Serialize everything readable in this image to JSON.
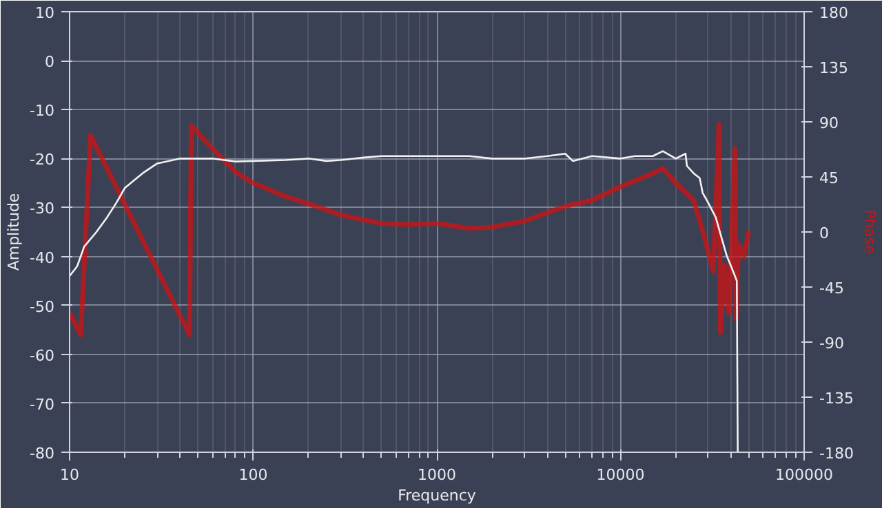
{
  "chart_data": {
    "type": "line",
    "xlabel": "Frequency",
    "ylabel": "Amplitude",
    "y2label": "Phase",
    "log": "x",
    "grid": true,
    "xlim": [
      10,
      100000
    ],
    "xticks": [
      10,
      100,
      1000,
      10000,
      100000
    ],
    "ylim": [
      -80,
      10
    ],
    "yticks": [
      -80,
      -70,
      -60,
      -50,
      -40,
      -30,
      -20,
      -10,
      0,
      10
    ],
    "y2lim": [
      -180,
      180
    ],
    "y2ticks": [
      -180,
      -135,
      -90,
      -45,
      0,
      45,
      90,
      135,
      180
    ],
    "series": [
      {
        "color": "#f2f2f2",
        "x": [
          10,
          11,
          12,
          14,
          16,
          18,
          20,
          25,
          30,
          40,
          60,
          80,
          100,
          150,
          200,
          250,
          300,
          400,
          500,
          700,
          1000,
          1500,
          2000,
          3000,
          4000,
          5000,
          5500,
          7000,
          10000,
          12000,
          15000,
          17000,
          20000,
          22600,
          23000,
          25000,
          27000,
          28000,
          30000,
          33000,
          36000,
          38000,
          40000,
          42000,
          43000,
          43500
        ],
        "values": [
          -44,
          -42,
          -38,
          -35,
          -32,
          -29,
          -26,
          -23,
          -21,
          -20,
          -20,
          -20.6,
          -20.5,
          -20.3,
          -20,
          -20.5,
          -20.3,
          -19.8,
          -19.5,
          -19.5,
          -19.5,
          -19.5,
          -20,
          -20,
          -19.5,
          -19,
          -20.5,
          -19.5,
          -20,
          -19.5,
          -19.5,
          -18.5,
          -20,
          -19,
          -21.5,
          -23,
          -24,
          -27,
          -29,
          -32,
          -37,
          -40,
          -42,
          -44,
          -45,
          -80
        ]
      },
      {
        "color": "#d01212",
        "axis": "y2",
        "x": [
          10,
          11.5,
          13,
          45,
          46,
          60,
          80,
          100,
          150,
          200,
          300,
          400,
          500,
          700,
          1000,
          1500,
          2000,
          3000,
          5000,
          7000,
          10000,
          15000,
          17000,
          20000,
          25000,
          28000,
          32000,
          34400,
          35000,
          37000,
          39000,
          42000,
          42500,
          44000,
          47000,
          50000
        ],
        "values": [
          -66,
          -84,
          79,
          -84,
          87,
          68,
          49,
          40,
          29,
          23,
          14,
          10,
          7,
          6,
          7,
          3,
          4,
          9,
          21,
          26,
          37,
          48,
          52,
          40,
          26,
          1,
          -32,
          88,
          -82,
          -27,
          -66,
          68,
          -71,
          -10,
          -20,
          1
        ]
      }
    ]
  }
}
